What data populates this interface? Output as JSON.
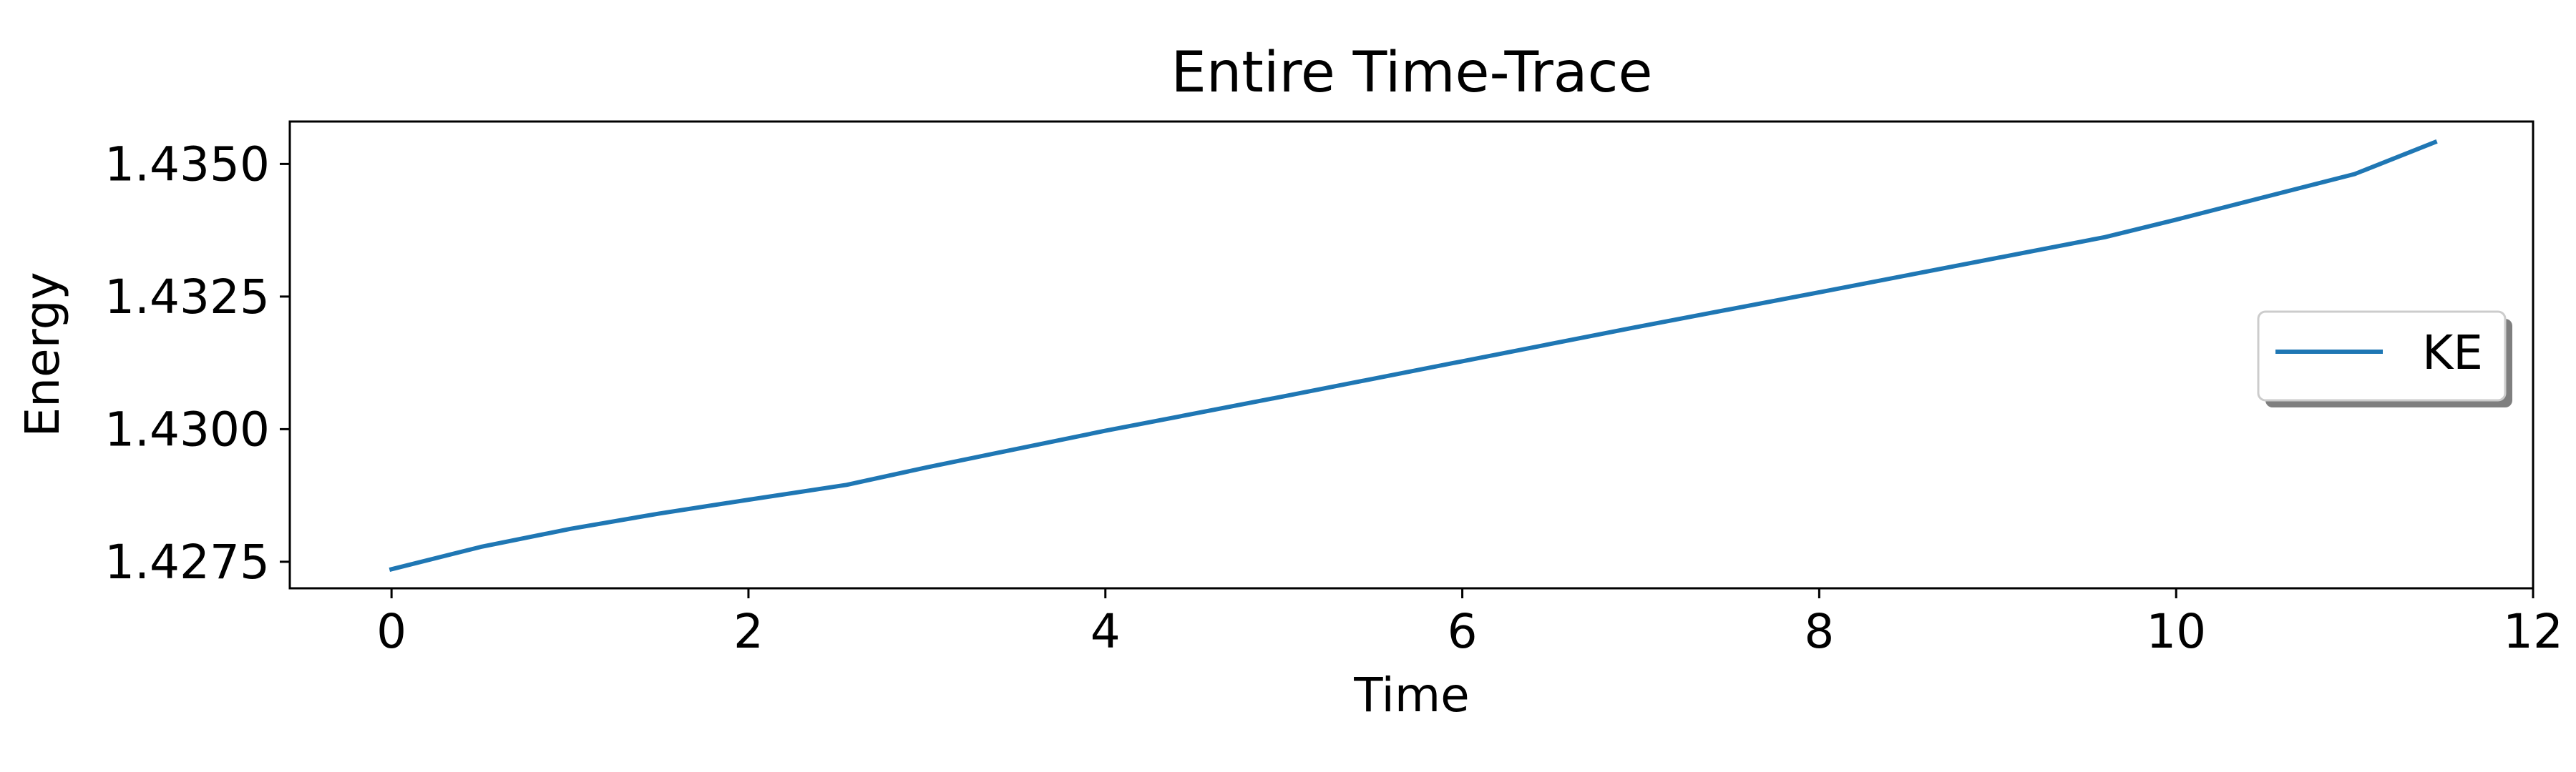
{
  "chart_data": {
    "type": "line",
    "title": "Entire Time-Trace",
    "xlabel": "Time",
    "ylabel": "Energy",
    "xlim": [
      -0.57,
      12.0
    ],
    "ylim": [
      1.427,
      1.4358
    ],
    "xticks": [
      0,
      2,
      4,
      6,
      8,
      10,
      12
    ],
    "xtick_labels": [
      "0",
      "2",
      "4",
      "6",
      "8",
      "10",
      "12"
    ],
    "yticks": [
      1.4275,
      1.43,
      1.4325,
      1.435
    ],
    "ytick_labels": [
      "1.4275",
      "1.4300",
      "1.4325",
      "1.4350"
    ],
    "grid": false,
    "legend_position": "center-right",
    "series": [
      {
        "name": "KE",
        "color": "#1f77b4",
        "x": [
          0,
          0.5,
          1.0,
          1.5,
          2.0,
          2.55,
          3.0,
          4.0,
          5.0,
          6.0,
          7.0,
          8.0,
          9.0,
          9.6,
          10.0,
          10.5,
          11.0,
          11.45
        ],
        "y": [
          1.42736,
          1.42778,
          1.42812,
          1.42841,
          1.42867,
          1.42895,
          1.42928,
          1.42997,
          1.43062,
          1.43128,
          1.43194,
          1.43258,
          1.43323,
          1.43362,
          1.43395,
          1.43438,
          1.43481,
          1.43541
        ]
      }
    ]
  }
}
